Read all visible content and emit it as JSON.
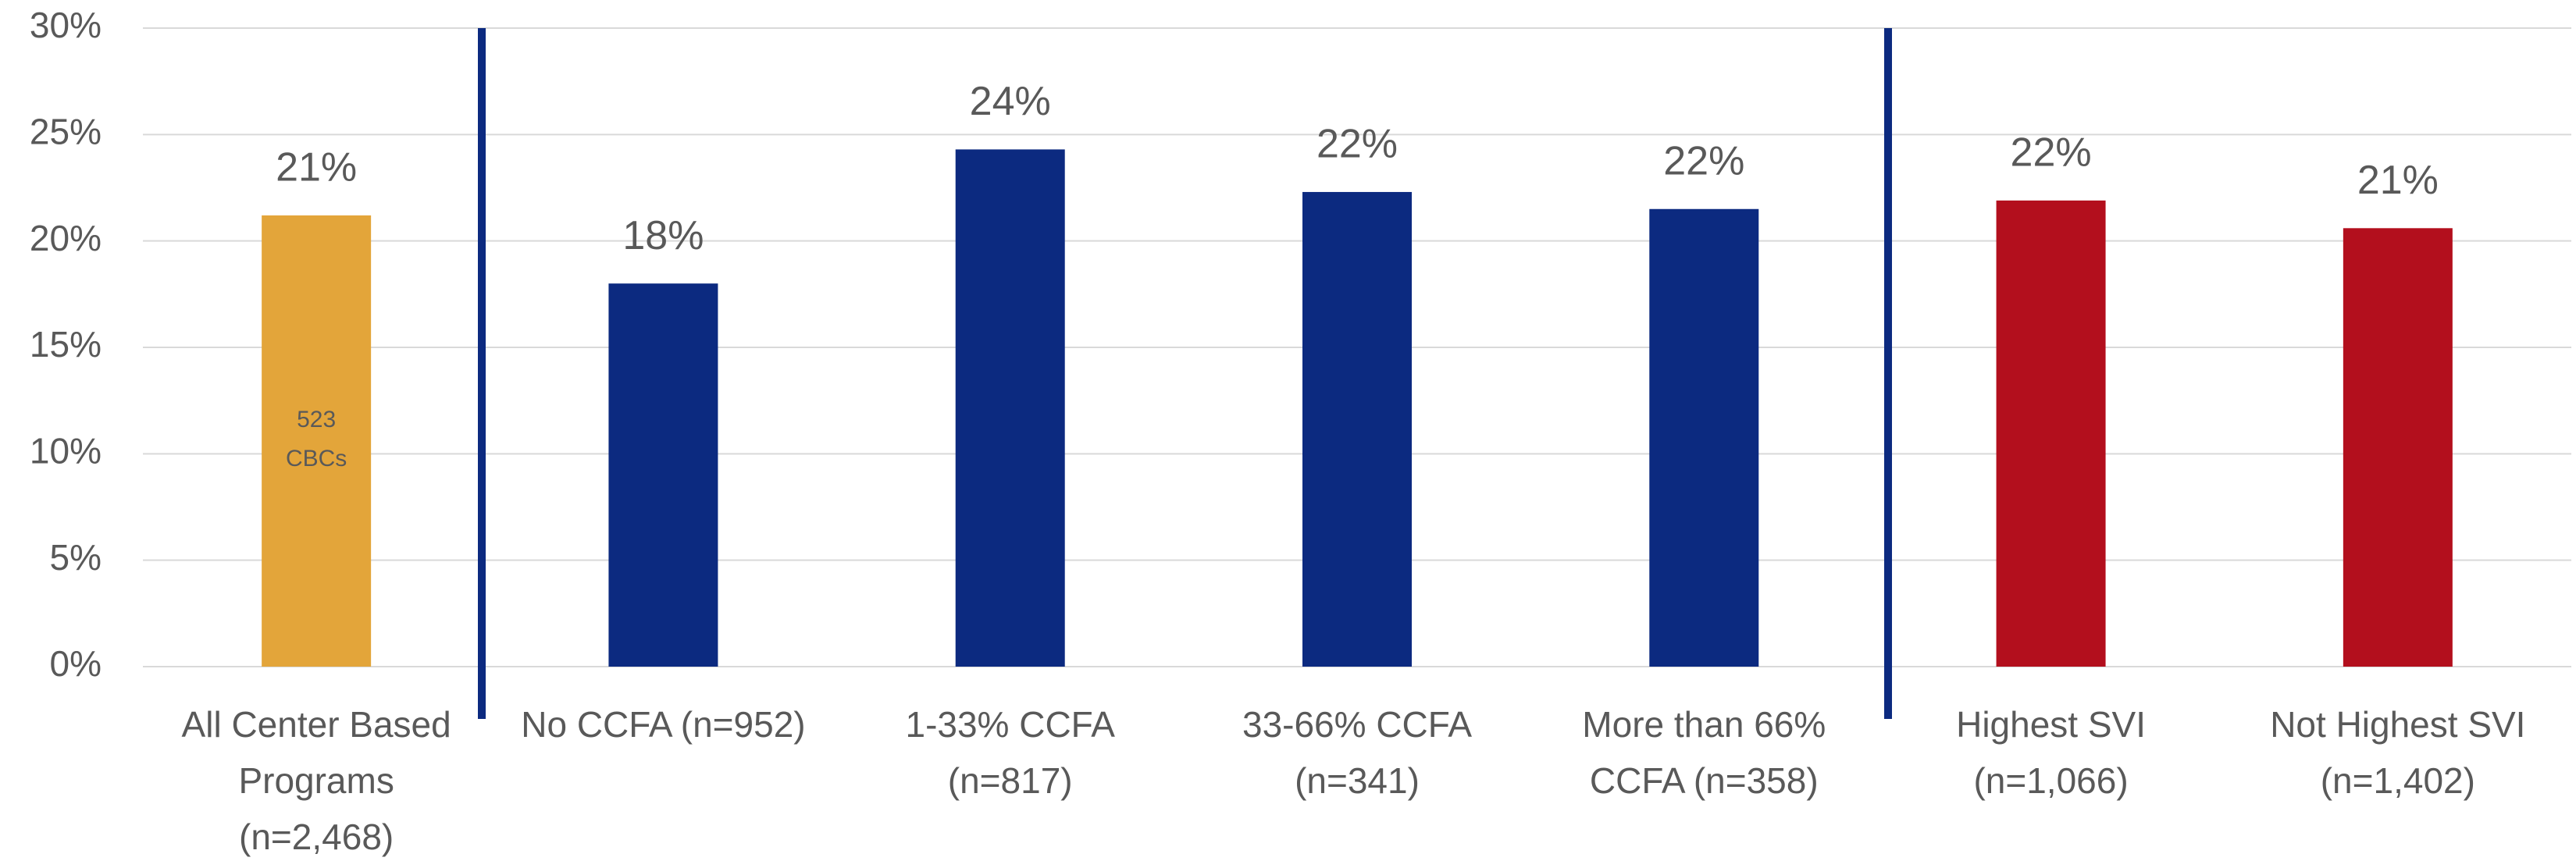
{
  "chart_data": {
    "type": "bar",
    "categories": [
      "All Center Based\nPrograms\n(n=2,468)",
      "No CCFA (n=952)",
      "1-33% CCFA\n(n=817)",
      "33-66% CCFA\n(n=341)",
      "More than 66%\nCCFA (n=358)",
      "Highest SVI\n(n=1,066)",
      "Not Highest SVI\n(n=1,402)"
    ],
    "values": [
      21.2,
      18,
      24.3,
      22.3,
      21.5,
      21.9,
      20.6
    ],
    "value_labels": [
      "21%",
      "18%",
      "24%",
      "22%",
      "22%",
      "22%",
      "21%"
    ],
    "colors": [
      "#e3a53a",
      "#0c2a80",
      "#0c2a80",
      "#0c2a80",
      "#0c2a80",
      "#b30f1d",
      "#b30f1d"
    ],
    "annotations": [
      "523",
      "CBCs"
    ],
    "ylim": [
      0,
      30
    ],
    "yticks": [
      {
        "value": 0,
        "label": "0%"
      },
      {
        "value": 5,
        "label": "5%"
      },
      {
        "value": 10,
        "label": "10%"
      },
      {
        "value": 15,
        "label": "15%"
      },
      {
        "value": 20,
        "label": "20%"
      },
      {
        "value": 25,
        "label": "25%"
      },
      {
        "value": 30,
        "label": "30%"
      }
    ],
    "grid": true
  }
}
